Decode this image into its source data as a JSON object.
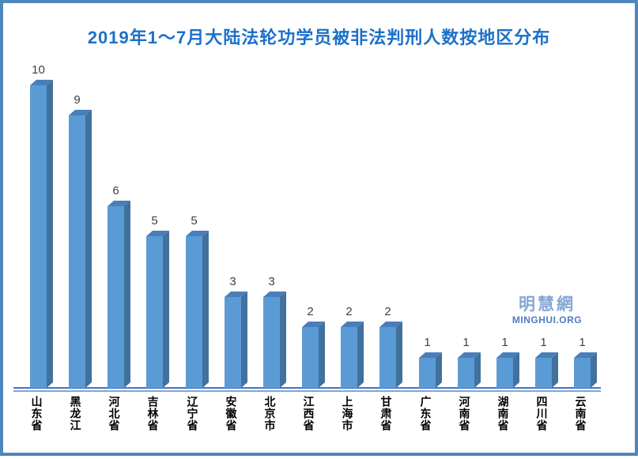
{
  "page": {
    "border_color": "#4e86bd",
    "background": "#ffffff",
    "title_color": "#1c70c9"
  },
  "watermark": {
    "cn": "明慧網",
    "en": "MINGHUI.ORG",
    "cn_color": "#84a7d5",
    "en_color": "#4d7cc1"
  },
  "chart_data": {
    "type": "bar",
    "style": "3d-column",
    "title": "2019年1～7月大陆法轮功学员被非法判刑人数按地区分布",
    "categories": [
      "山东省",
      "黑龙江",
      "河北省",
      "吉林省",
      "辽宁省",
      "安徽省",
      "北京市",
      "江西省",
      "上海市",
      "甘肃省",
      "广东省",
      "河南省",
      "湖南省",
      "四川省",
      "云南省"
    ],
    "values": [
      10,
      9,
      6,
      5,
      5,
      3,
      3,
      2,
      2,
      2,
      1,
      1,
      1,
      1,
      1
    ],
    "xlabel": "",
    "ylabel": "",
    "ylim": [
      0,
      10
    ],
    "grid": false,
    "legend": null,
    "data_labels": true,
    "orientation": "vertical",
    "colors": {
      "bar_front": "#5b9bd5",
      "bar_side": "#41719c",
      "bar_top": "#4a7ebb",
      "axis_line": "#4472c4",
      "axis_line_sub": "#7ea6d8",
      "value_label": "#3f3f3f",
      "category_label": "#000000"
    }
  }
}
